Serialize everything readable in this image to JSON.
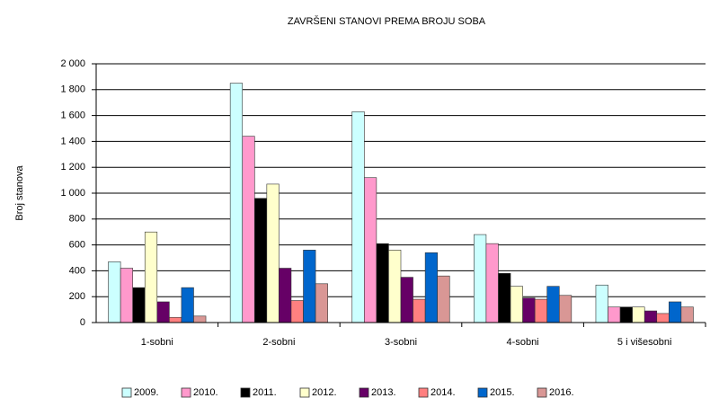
{
  "chart_data": {
    "type": "bar",
    "title": "ZAVRŠENI STANOVI PREMA BROJU SOBA",
    "y_label": "Broj stanova",
    "categories": [
      "1-sobni",
      "2-sobni",
      "3-sobni",
      "4-sobni",
      "5 i višesobni"
    ],
    "series": [
      {
        "name": "2009.",
        "color": "#ccffff",
        "values": [
          470,
          1850,
          1630,
          680,
          290
        ]
      },
      {
        "name": "2010.",
        "color": "#ff99cc",
        "values": [
          420,
          1440,
          1120,
          610,
          120
        ]
      },
      {
        "name": "2011.",
        "color": "#000000",
        "values": [
          270,
          960,
          610,
          380,
          120
        ]
      },
      {
        "name": "2012.",
        "color": "#ffffcc",
        "values": [
          700,
          1070,
          560,
          280,
          120
        ]
      },
      {
        "name": "2013.",
        "color": "#660066",
        "values": [
          160,
          420,
          350,
          190,
          90
        ]
      },
      {
        "name": "2014.",
        "color": "#ff8080",
        "values": [
          40,
          170,
          180,
          180,
          70
        ]
      },
      {
        "name": "2015.",
        "color": "#0066cc",
        "values": [
          270,
          560,
          540,
          280,
          160
        ]
      },
      {
        "name": "2016.",
        "color": "#d99795",
        "values": [
          50,
          300,
          360,
          210,
          120
        ]
      }
    ],
    "ylim": [
      0,
      2000
    ],
    "yticks": [
      0,
      {
        "value": 200,
        "label": "200"
      },
      {
        "value": 400,
        "label": "400"
      },
      {
        "value": 600,
        "label": "600"
      },
      {
        "value": 800,
        "label": "800"
      },
      {
        "value": 1000,
        "label": "1 000"
      },
      {
        "value": 1200,
        "label": "1 200"
      },
      {
        "value": 1400,
        "label": "1 400"
      },
      {
        "value": 1600,
        "label": "1 600"
      },
      {
        "value": 1800,
        "label": "1 800"
      },
      {
        "value": 2000,
        "label": "2 000"
      }
    ],
    "grid": true,
    "legend": "bottom"
  }
}
